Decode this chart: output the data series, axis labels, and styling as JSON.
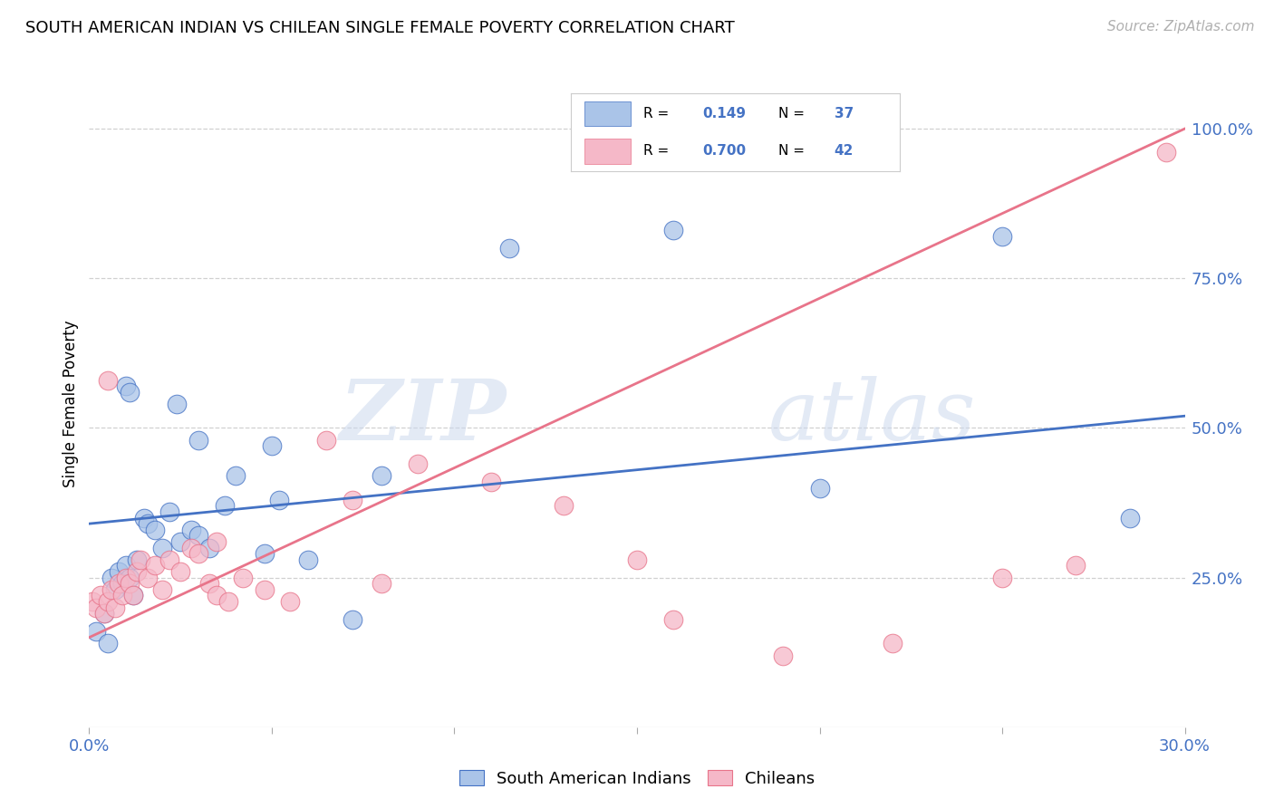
{
  "title": "SOUTH AMERICAN INDIAN VS CHILEAN SINGLE FEMALE POVERTY CORRELATION CHART",
  "source": "Source: ZipAtlas.com",
  "ylabel": "Single Female Poverty",
  "legend_label1": "South American Indians",
  "legend_label2": "Chileans",
  "R1": 0.149,
  "N1": 37,
  "R2": 0.7,
  "N2": 42,
  "color_blue": "#aac4e8",
  "color_pink": "#f5b8c8",
  "color_blue_dark": "#4472c4",
  "color_pink_dark": "#e8748a",
  "color_blue_text": "#4472c4",
  "blue_scatter_x": [
    0.2,
    0.4,
    0.5,
    0.6,
    0.7,
    0.8,
    0.9,
    1.0,
    1.1,
    1.2,
    1.3,
    1.5,
    1.6,
    1.8,
    2.0,
    2.2,
    2.5,
    2.8,
    3.0,
    3.3,
    3.7,
    4.0,
    4.8,
    5.2,
    6.0,
    7.2,
    8.0,
    11.5,
    16.0,
    20.0,
    25.0,
    28.5,
    1.0,
    1.1,
    2.4,
    3.0,
    5.0
  ],
  "blue_scatter_y": [
    16,
    19,
    14,
    25,
    23,
    26,
    24,
    27,
    25,
    22,
    28,
    35,
    34,
    33,
    30,
    36,
    31,
    33,
    32,
    30,
    37,
    42,
    29,
    38,
    28,
    18,
    42,
    80,
    83,
    40,
    82,
    35,
    57,
    56,
    54,
    48,
    47
  ],
  "pink_scatter_x": [
    0.1,
    0.2,
    0.3,
    0.4,
    0.5,
    0.6,
    0.7,
    0.8,
    0.9,
    1.0,
    1.1,
    1.2,
    1.3,
    1.4,
    1.6,
    1.8,
    2.0,
    2.2,
    2.5,
    2.8,
    3.0,
    3.3,
    3.5,
    3.8,
    4.2,
    4.8,
    5.5,
    6.5,
    7.2,
    8.0,
    9.0,
    11.0,
    13.0,
    16.0,
    19.0,
    22.0,
    25.0,
    27.0,
    29.5,
    0.5,
    3.5,
    15.0
  ],
  "pink_scatter_y": [
    21,
    20,
    22,
    19,
    21,
    23,
    20,
    24,
    22,
    25,
    24,
    22,
    26,
    28,
    25,
    27,
    23,
    28,
    26,
    30,
    29,
    24,
    22,
    21,
    25,
    23,
    21,
    48,
    38,
    24,
    44,
    41,
    37,
    18,
    12,
    14,
    25,
    27,
    96,
    58,
    31,
    28
  ],
  "blue_trend_x": [
    0,
    30
  ],
  "blue_trend_y": [
    34,
    52
  ],
  "pink_trend_x": [
    0,
    30
  ],
  "pink_trend_y": [
    15,
    100
  ],
  "xlim": [
    0,
    30
  ],
  "ylim": [
    0,
    108
  ],
  "yticks": [
    0,
    25,
    50,
    75,
    100
  ],
  "yticklabels": [
    "",
    "25.0%",
    "50.0%",
    "75.0%",
    "100.0%"
  ],
  "xtick_positions": [
    0,
    5,
    10,
    15,
    20,
    25,
    30
  ],
  "xtick_labels": [
    "0.0%",
    "",
    "",
    "",
    "",
    "",
    "30.0%"
  ]
}
